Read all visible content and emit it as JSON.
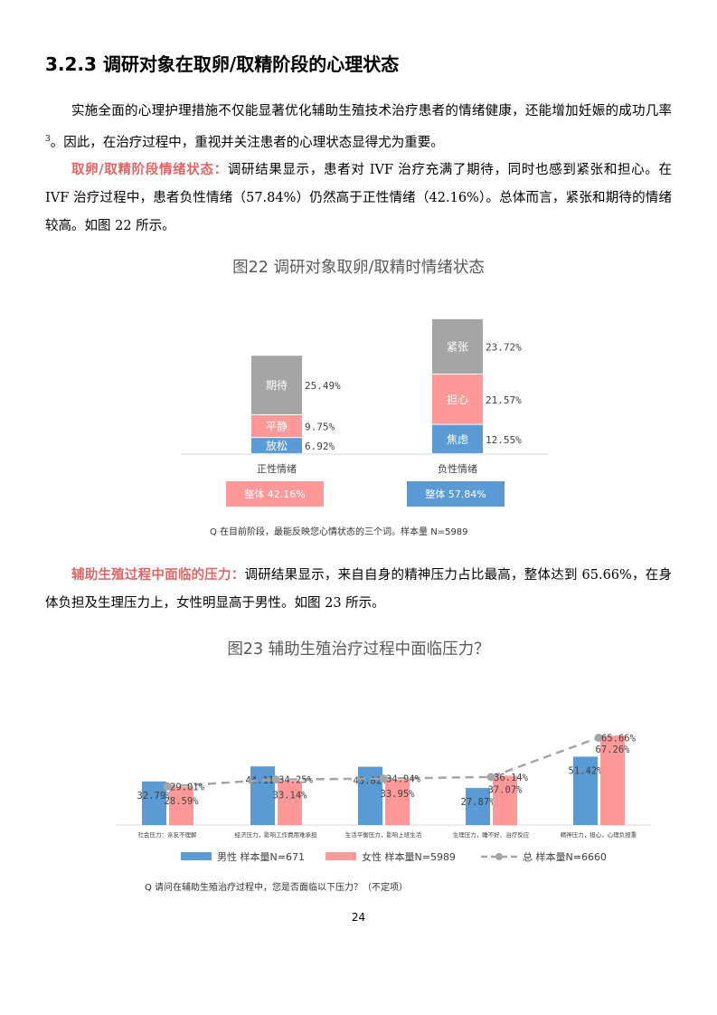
{
  "section": {
    "title": "3.2.3 调研对象在取卵/取精阶段的心理状态"
  },
  "p1": {
    "text": "实施全面的心理护理措施不仅能显著优化辅助生殖技术治疗患者的情绪健康，还能增加妊娠的成功几率",
    "sup": "3",
    "tail": "。因此，在治疗过程中，重视并关注患者的心理状态显得尤为重要。"
  },
  "p2": {
    "label": "取卵/取精阶段情绪状态：",
    "text": "调研结果显示，患者对 IVF 治疗充满了期待，同时也感到紧张和担心。在 IVF 治疗过程中，患者负性情绪（57.84%）仍然高于正性情绪（42.16%）。总体而言，紧张和期待的情绪较高。如图 22 所示。"
  },
  "fig22": {
    "title": "图22  调研对象取卵/取精时情绪状态",
    "note": "Q 在目前阶段，最能反映您心情状态的三个词。样本量 N=5989",
    "chart_data": {
      "type": "bar",
      "stacked": true,
      "categories": [
        "正性情绪",
        "负性情绪"
      ],
      "series": [
        {
          "group": "正性情绪",
          "segments": [
            {
              "name": "放松",
              "value": 6.92,
              "label": "6.92%",
              "color": "#5b9bd5"
            },
            {
              "name": "平静",
              "value": 9.75,
              "label": "9.75%",
              "color": "#ff9999"
            },
            {
              "name": "期待",
              "value": 25.49,
              "label": "25.49%",
              "color": "#a5a5a5"
            }
          ]
        },
        {
          "group": "负性情绪",
          "segments": [
            {
              "name": "焦虑",
              "value": 12.55,
              "label": "12.55%",
              "color": "#5b9bd5"
            },
            {
              "name": "担心",
              "value": 21.57,
              "label": "21.57%",
              "color": "#ff9999"
            },
            {
              "name": "紧张",
              "value": 23.72,
              "label": "23.72%",
              "color": "#a5a5a5"
            }
          ]
        }
      ],
      "totals": [
        {
          "label": "整体 42.16%",
          "value": 42.16,
          "color": "#ff9999"
        },
        {
          "label": "整体 57.84%",
          "value": 57.84,
          "color": "#5b9bd5"
        }
      ]
    }
  },
  "p3": {
    "label": "辅助生殖过程中面临的压力：",
    "text": "调研结果显示，来自自身的精神压力占比最高，整体达到 65.66%，在身体负担及生理压力上，女性明显高于男性。如图 23 所示。"
  },
  "fig23": {
    "title": "图23  辅助生殖治疗过程中面临压力？",
    "note": "Q  请问在辅助生殖治疗过程中，您是否面临以下压力？（不定项）",
    "chart_data": {
      "type": "bar",
      "categories": [
        "社会压力：亲友不理解",
        "经济压力，影响工作费用难承担",
        "生活平衡压力，影响上班生活",
        "生理压力，睡不好、治疗反应",
        "精神压力，担心，心理负担重"
      ],
      "series": [
        {
          "name": "男性  样本量N=671",
          "values": [
            32.79,
            44.11,
            43.82,
            27.87,
            51.42
          ],
          "labels": [
            "32.79%",
            "44.11%",
            "43.82%",
            "27.87%",
            "51.42%"
          ],
          "color": "#5b9bd5"
        },
        {
          "name": "女性  样本量N=5989",
          "values": [
            28.59,
            33.14,
            33.95,
            37.07,
            67.26
          ],
          "labels": [
            "28.59%",
            "33.14%",
            "33.95%",
            "37.07%",
            "67.26%"
          ],
          "color": "#ff9999"
        },
        {
          "name": "总  样本量N=6660",
          "type": "line",
          "dashed": true,
          "values": [
            29.01,
            34.25,
            34.94,
            36.14,
            65.66
          ],
          "labels": [
            "29.01%",
            "34.25%",
            "34.94%",
            "36.14%",
            "65.66%"
          ],
          "color": "#a5a5a5"
        }
      ],
      "legend": "bottom",
      "ylim": [
        0,
        80
      ]
    }
  },
  "page_number": "24"
}
